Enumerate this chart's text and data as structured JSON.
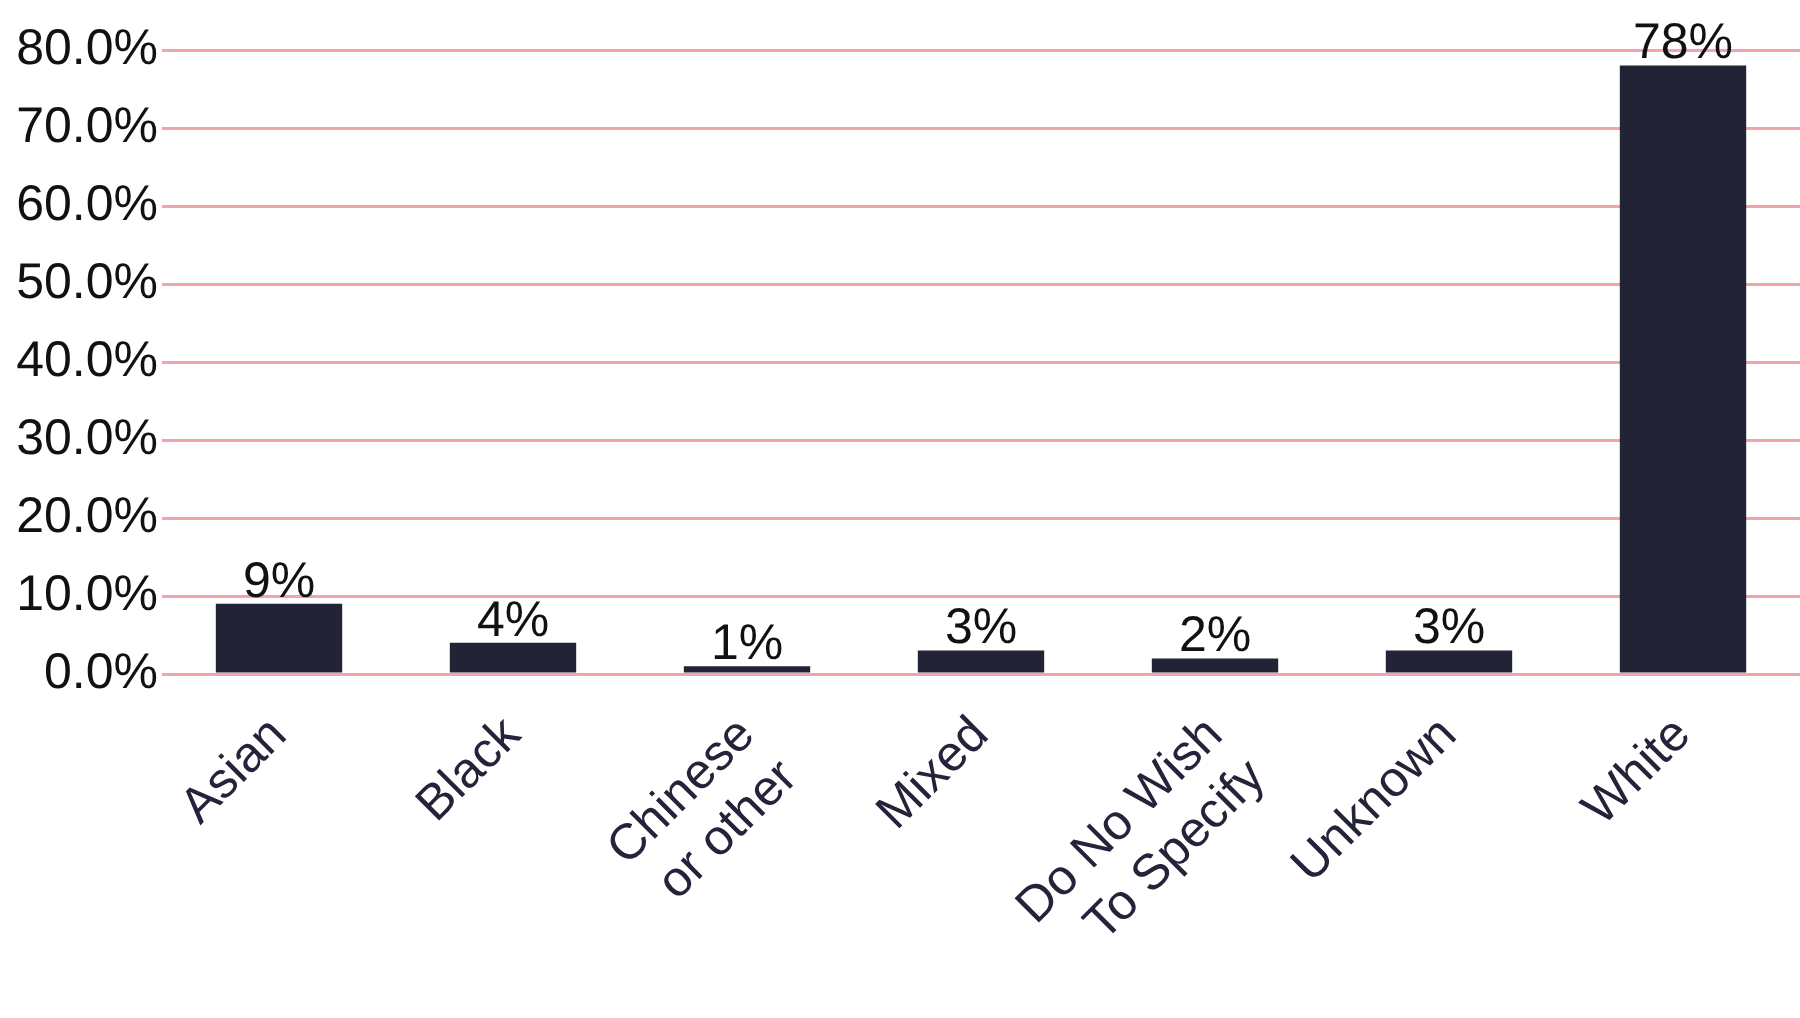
{
  "chart_data": {
    "type": "bar",
    "categories": [
      "Asian",
      "Black",
      "Chinese or other",
      "Mixed",
      "Do No Wish To Specify",
      "Unknown",
      "White"
    ],
    "values": [
      9,
      4,
      1,
      3,
      2,
      3,
      78
    ],
    "value_labels": [
      "9%",
      "4%",
      "1%",
      "3%",
      "2%",
      "3%",
      "78%"
    ],
    "color": "#232336",
    "ylim": [
      0,
      80
    ],
    "yticks": [
      {
        "value": 0,
        "label": "0.0%"
      },
      {
        "value": 10,
        "label": "10.0%"
      },
      {
        "value": 20,
        "label": "20.0%"
      },
      {
        "value": 30,
        "label": "30.0%"
      },
      {
        "value": 40,
        "label": "40.0%"
      },
      {
        "value": 50,
        "label": "50.0%"
      },
      {
        "value": 60,
        "label": "60.0%"
      },
      {
        "value": 70,
        "label": "70.0%"
      },
      {
        "value": 80,
        "label": "80.0%"
      }
    ],
    "grid": "y",
    "legend": false
  }
}
